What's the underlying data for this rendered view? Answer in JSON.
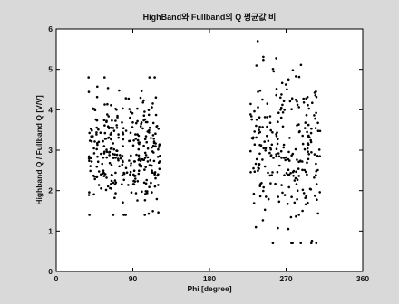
{
  "chart_data": {
    "type": "scatter",
    "title": "HighBand와 Fullband의 Q 평균값 비",
    "xlabel": "Phi [degree]",
    "ylabel": "Highband Q / Fullband Q [V/V]",
    "xlim": [
      0,
      360
    ],
    "ylim": [
      0,
      6
    ],
    "xticks": [
      0,
      90,
      180,
      270,
      360
    ],
    "yticks": [
      0,
      1,
      2,
      3,
      4,
      5,
      6
    ],
    "grid": false,
    "marker_color": "#000000",
    "background_color": "#ffffff",
    "clusters": [
      {
        "x_range": [
          38,
          122
        ],
        "y_range": [
          1.4,
          4.8
        ],
        "mean_y": 3.0,
        "count": 320
      },
      {
        "x_range": [
          228,
          310
        ],
        "y_range": [
          0.7,
          5.7
        ],
        "mean_y": 2.9,
        "count": 260
      }
    ]
  }
}
